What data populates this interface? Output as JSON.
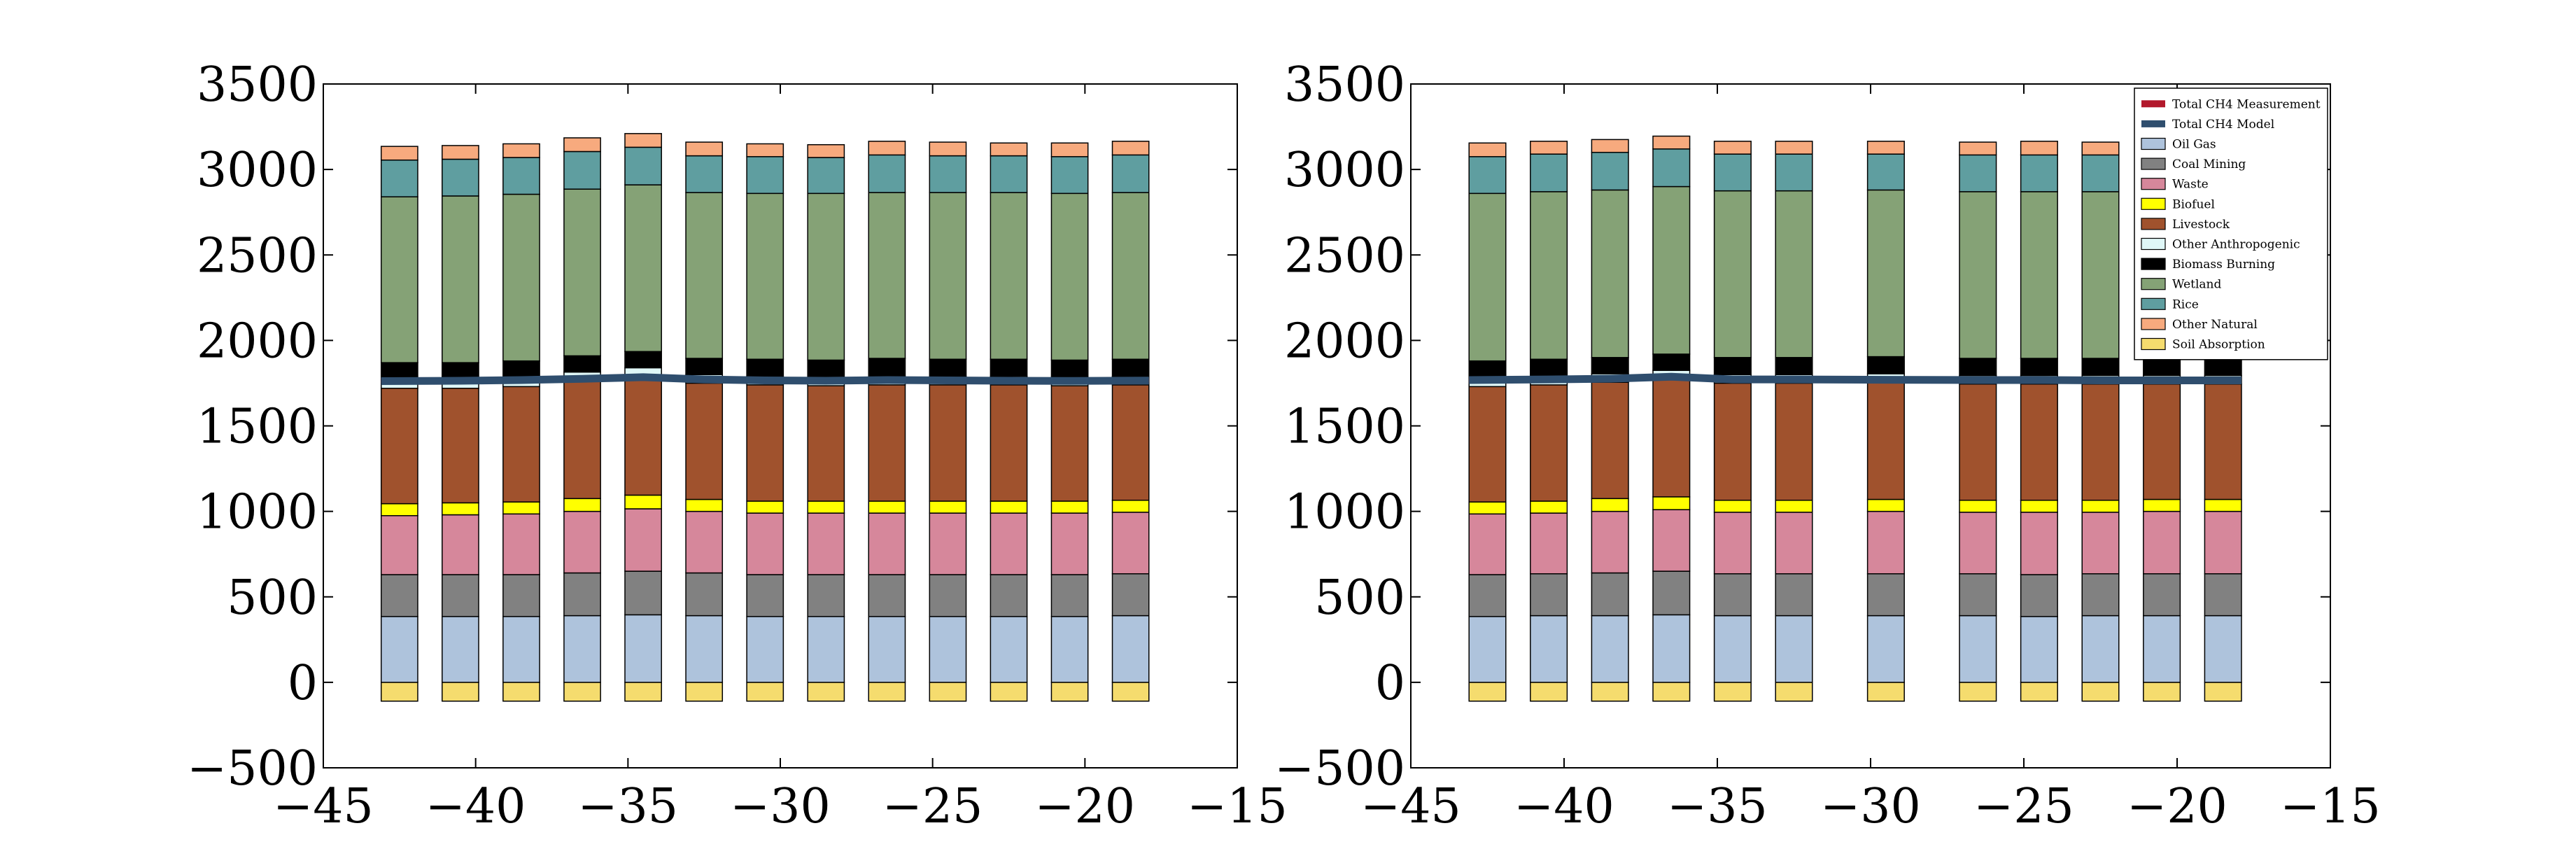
{
  "chart_data": [
    {
      "type": "bar",
      "stacked": true,
      "xlim": [
        -45,
        -15
      ],
      "ylim": [
        -500,
        3500
      ],
      "xticks": [
        -45,
        -40,
        -35,
        -30,
        -25,
        -20,
        -15
      ],
      "yticks": [
        -500,
        0,
        500,
        1000,
        1500,
        2000,
        2500,
        3000,
        3500
      ],
      "x": [
        -42.5,
        -40.5,
        -38.5,
        -36.5,
        -34.5,
        -32.5,
        -30.5,
        -28.5,
        -26.5,
        -24.5,
        -22.5,
        -20.5,
        -18.5
      ],
      "negative_series": [
        {
          "name": "Soil Absorption",
          "color": "#f5dc6e",
          "values": [
            -110,
            -110,
            -110,
            -110,
            -110,
            -110,
            -110,
            -110,
            -110,
            -110,
            -110,
            -110,
            -110
          ]
        }
      ],
      "series": [
        {
          "name": "Oil  Gas",
          "color": "#aec3dc",
          "values": [
            385,
            385,
            385,
            390,
            395,
            390,
            385,
            385,
            385,
            385,
            385,
            385,
            390
          ]
        },
        {
          "name": "Coal Mining",
          "color": "#818181",
          "values": [
            245,
            245,
            245,
            250,
            255,
            250,
            245,
            245,
            245,
            245,
            245,
            245,
            245
          ]
        },
        {
          "name": "Waste",
          "color": "#d6879b",
          "values": [
            345,
            350,
            355,
            360,
            365,
            360,
            360,
            360,
            360,
            360,
            360,
            360,
            360
          ]
        },
        {
          "name": "Biofuel",
          "color": "#ffff00",
          "values": [
            70,
            70,
            70,
            75,
            80,
            70,
            70,
            70,
            70,
            70,
            70,
            70,
            70
          ]
        },
        {
          "name": "Livestock",
          "color": "#a0522d",
          "values": [
            675,
            670,
            675,
            690,
            695,
            680,
            680,
            675,
            680,
            680,
            680,
            675,
            675
          ]
        },
        {
          "name": "Other Anthropogenic",
          "color": "#dff7f7",
          "values": [
            50,
            50,
            50,
            50,
            50,
            50,
            50,
            50,
            50,
            50,
            50,
            50,
            50
          ]
        },
        {
          "name": "Biomass Burning",
          "color": "#000000",
          "values": [
            100,
            100,
            100,
            95,
            95,
            95,
            100,
            100,
            105,
            100,
            100,
            100,
            100
          ]
        },
        {
          "name": "Wetland",
          "color": "#85a276",
          "values": [
            970,
            975,
            975,
            975,
            975,
            970,
            970,
            975,
            970,
            975,
            975,
            975,
            975
          ]
        },
        {
          "name": "Rice",
          "color": "#5f9ea0",
          "values": [
            215,
            215,
            215,
            220,
            220,
            215,
            215,
            210,
            220,
            215,
            215,
            215,
            220
          ]
        },
        {
          "name": "Other Natural",
          "color": "#f7aa7e",
          "values": [
            80,
            80,
            80,
            80,
            80,
            80,
            75,
            75,
            80,
            80,
            75,
            80,
            80
          ]
        }
      ],
      "lines": [
        {
          "name": "Total CH4 Measurement",
          "color": "#b2182b",
          "values": [
            1765,
            1766,
            1770,
            1780,
            1790,
            1775,
            1768,
            1765,
            1770,
            1768,
            1767,
            1766,
            1768
          ]
        },
        {
          "name": "Total CH4 Model",
          "color": "#2f4e6e",
          "values": [
            1762,
            1764,
            1768,
            1775,
            1785,
            1772,
            1766,
            1764,
            1768,
            1766,
            1764,
            1763,
            1765
          ]
        }
      ]
    },
    {
      "type": "bar",
      "stacked": true,
      "xlim": [
        -45,
        -15
      ],
      "ylim": [
        -500,
        3500
      ],
      "xticks": [
        -45,
        -40,
        -35,
        -30,
        -25,
        -20,
        -15
      ],
      "yticks": [
        -500,
        0,
        500,
        1000,
        1500,
        2000,
        2500,
        3000,
        3500
      ],
      "x": [
        -42.5,
        -40.5,
        -38.5,
        -36.5,
        -34.5,
        -32.5,
        -29.5,
        -26.5,
        -24.5,
        -22.5,
        -20.5,
        -18.5
      ],
      "legend_placement": "top-right",
      "negative_series": [
        {
          "name": "Soil Absorption",
          "color": "#f5dc6e",
          "values": [
            -110,
            -110,
            -110,
            -110,
            -110,
            -110,
            -110,
            -110,
            -110,
            -110,
            -110,
            -110
          ]
        }
      ],
      "series": [
        {
          "name": "Oil  Gas",
          "color": "#aec3dc",
          "values": [
            385,
            390,
            390,
            395,
            390,
            390,
            390,
            390,
            385,
            390,
            390,
            390
          ]
        },
        {
          "name": "Coal Mining",
          "color": "#818181",
          "values": [
            245,
            245,
            250,
            255,
            245,
            245,
            245,
            245,
            245,
            245,
            245,
            245
          ]
        },
        {
          "name": "Waste",
          "color": "#d6879b",
          "values": [
            355,
            355,
            360,
            360,
            360,
            360,
            365,
            360,
            365,
            360,
            365,
            365
          ]
        },
        {
          "name": "Biofuel",
          "color": "#ffff00",
          "values": [
            70,
            70,
            75,
            75,
            70,
            70,
            70,
            70,
            70,
            70,
            70,
            70
          ]
        },
        {
          "name": "Livestock",
          "color": "#a0522d",
          "values": [
            675,
            680,
            680,
            690,
            685,
            685,
            685,
            680,
            680,
            680,
            675,
            675
          ]
        },
        {
          "name": "Other Anthropogenic",
          "color": "#dff7f7",
          "values": [
            50,
            50,
            50,
            50,
            50,
            50,
            50,
            50,
            50,
            50,
            50,
            50
          ]
        },
        {
          "name": "Biomass Burning",
          "color": "#000000",
          "values": [
            100,
            100,
            95,
            95,
            100,
            100,
            100,
            100,
            100,
            100,
            100,
            100
          ]
        },
        {
          "name": "Wetland",
          "color": "#85a276",
          "values": [
            980,
            980,
            980,
            980,
            975,
            975,
            975,
            975,
            975,
            975,
            975,
            975
          ]
        },
        {
          "name": "Rice",
          "color": "#5f9ea0",
          "values": [
            215,
            220,
            220,
            220,
            215,
            215,
            210,
            215,
            215,
            215,
            215,
            215
          ]
        },
        {
          "name": "Other Natural",
          "color": "#f7aa7e",
          "values": [
            80,
            75,
            75,
            75,
            75,
            75,
            75,
            75,
            80,
            75,
            75,
            75
          ]
        }
      ],
      "lines": [
        {
          "name": "Total CH4 Measurement",
          "color": "#b2182b",
          "values": [
            1770,
            1775,
            1778,
            1790,
            1775,
            1774,
            1772,
            1770,
            1770,
            1768,
            1768,
            1768
          ]
        },
        {
          "name": "Total CH4 Model",
          "color": "#2f4e6e",
          "values": [
            1768,
            1772,
            1776,
            1788,
            1772,
            1772,
            1770,
            1768,
            1768,
            1766,
            1766,
            1766
          ]
        }
      ]
    }
  ],
  "legend": {
    "entries": [
      {
        "label": "Total CH4 Measurement",
        "color": "#b2182b"
      },
      {
        "label": "Total CH4 Model",
        "color": "#2f4e6e"
      },
      {
        "label": "Oil  Gas",
        "color": "#aec3dc"
      },
      {
        "label": "Coal Mining",
        "color": "#818181"
      },
      {
        "label": "Waste",
        "color": "#d6879b"
      },
      {
        "label": "Biofuel",
        "color": "#ffff00"
      },
      {
        "label": "Livestock",
        "color": "#a0522d"
      },
      {
        "label": "Other Anthropogenic",
        "color": "#dff7f7"
      },
      {
        "label": "Biomass Burning",
        "color": "#000000"
      },
      {
        "label": "Wetland",
        "color": "#85a276"
      },
      {
        "label": "Rice",
        "color": "#5f9ea0"
      },
      {
        "label": "Other Natural",
        "color": "#f7aa7e"
      },
      {
        "label": "Soil Absorption",
        "color": "#f5dc6e"
      }
    ]
  }
}
